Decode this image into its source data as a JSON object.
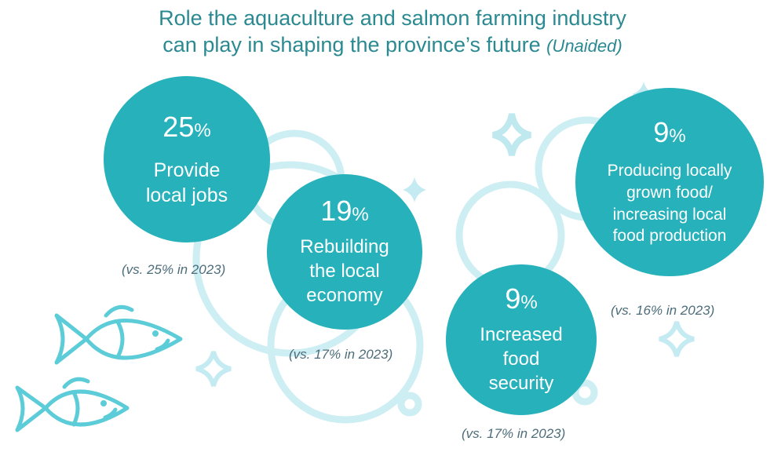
{
  "title": {
    "text": "Role the aquaculture and salmon farming industry can play in shaping the province’s future",
    "line1": "Role the aquaculture and salmon farming industry",
    "line2": "can play in shaping the province’s future",
    "qualifier": "(Unaided)"
  },
  "colors": {
    "bubble": "#26b1bb",
    "title": "#2b8a91",
    "decoration": "#bfe9ef",
    "comparison_text": "#4d6d7a"
  },
  "icons": [
    "fish-icon",
    "sparkle-icon",
    "bubble-outline-icon"
  ],
  "chart_data": {
    "type": "bubble",
    "unit": "%",
    "categories": [
      "Provide local jobs",
      "Rebuilding the local economy",
      "Increased food security",
      "Producing locally grown food/ increasing local food production"
    ],
    "values": [
      25,
      19,
      9,
      9
    ],
    "comparison_2023": [
      25,
      17,
      17,
      16
    ],
    "items": [
      {
        "value": "25",
        "percent_sign": "%",
        "label_lines": [
          "Provide",
          "local jobs"
        ],
        "comparison": "(vs. 25% in 2023)"
      },
      {
        "value": "19",
        "percent_sign": "%",
        "label_lines": [
          "Rebuilding",
          "the local",
          "economy"
        ],
        "comparison": "(vs. 17% in 2023)"
      },
      {
        "value": "9",
        "percent_sign": "%",
        "label_lines": [
          "Increased",
          "food",
          "security"
        ],
        "comparison": "(vs. 17% in 2023)"
      },
      {
        "value": "9",
        "percent_sign": "%",
        "label_lines": [
          "Producing locally",
          "grown food/",
          "increasing local",
          "food production"
        ],
        "comparison": "(vs. 16% in 2023)"
      }
    ]
  }
}
